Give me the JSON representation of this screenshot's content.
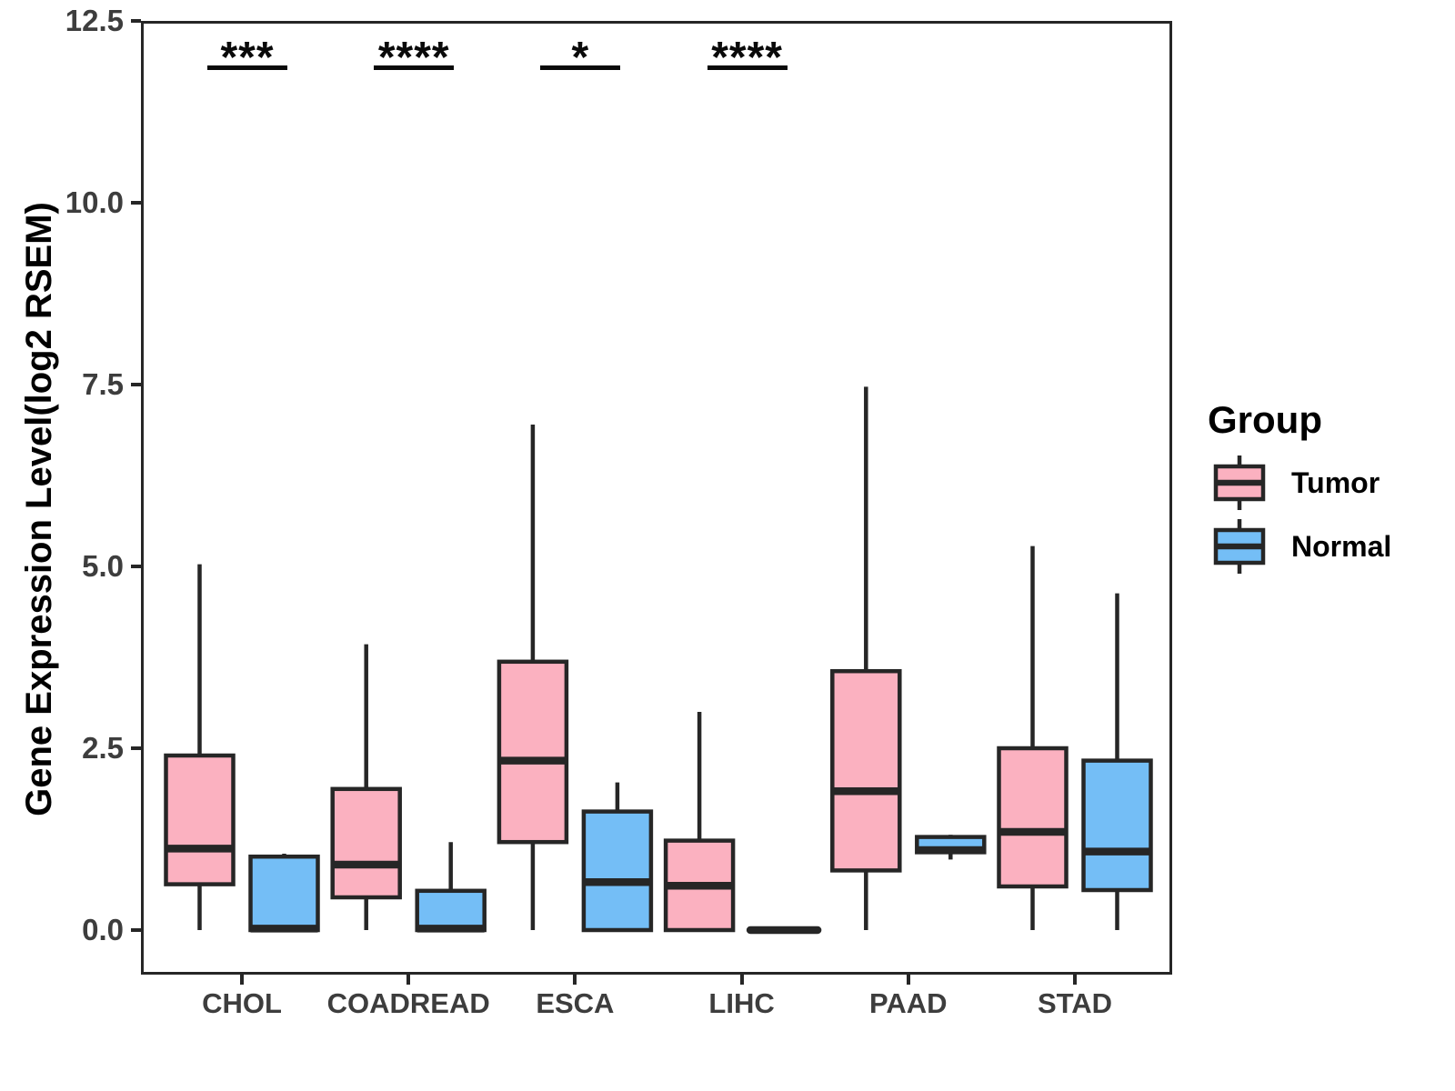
{
  "chart_data": {
    "type": "boxplot",
    "title": "",
    "xlabel": "",
    "ylabel": "Gene Expression Level(log2 RSEM)",
    "ylim": [
      -0.6,
      12.5
    ],
    "yticks": [
      0.0,
      2.5,
      5.0,
      7.5,
      10.0,
      12.5
    ],
    "ytick_labels": [
      "0.0",
      "2.5",
      "5.0",
      "7.5",
      "10.0",
      "12.5"
    ],
    "categories": [
      "CHOL",
      "COADREAD",
      "ESCA",
      "LIHC",
      "PAAD",
      "STAD"
    ],
    "grid": false,
    "series": [
      {
        "name": "Tumor",
        "color": "#FBB1C0",
        "boxes": [
          {
            "min": 0.0,
            "q1": 0.63,
            "median": 1.12,
            "q3": 2.4,
            "max": 5.03
          },
          {
            "min": 0.0,
            "q1": 0.45,
            "median": 0.9,
            "q3": 1.94,
            "max": 3.93
          },
          {
            "min": 0.0,
            "q1": 1.21,
            "median": 2.33,
            "q3": 3.69,
            "max": 6.95
          },
          {
            "min": 0.0,
            "q1": 0.0,
            "median": 0.61,
            "q3": 1.23,
            "max": 3.0
          },
          {
            "min": 0.0,
            "q1": 0.82,
            "median": 1.91,
            "q3": 3.56,
            "max": 7.47
          },
          {
            "min": 0.0,
            "q1": 0.6,
            "median": 1.35,
            "q3": 2.5,
            "max": 5.28
          }
        ]
      },
      {
        "name": "Normal",
        "color": "#74BEF6",
        "boxes": [
          {
            "min": 0.0,
            "q1": 0.0,
            "median": 0.02,
            "q3": 1.01,
            "max": 1.05
          },
          {
            "min": 0.0,
            "q1": 0.0,
            "median": 0.02,
            "q3": 0.54,
            "max": 1.21
          },
          {
            "min": 0.0,
            "q1": 0.0,
            "median": 0.66,
            "q3": 1.63,
            "max": 2.03
          },
          {
            "min": 0.0,
            "q1": 0.0,
            "median": 0.0,
            "q3": 0.0,
            "max": 0.0
          },
          {
            "min": 0.97,
            "q1": 1.07,
            "median": 1.1,
            "q3": 1.28,
            "max": 1.31
          },
          {
            "min": 0.0,
            "q1": 0.55,
            "median": 1.08,
            "q3": 2.33,
            "max": 4.63
          }
        ]
      }
    ],
    "significance": [
      {
        "category": "CHOL",
        "label": "***"
      },
      {
        "category": "COADREAD",
        "label": "****"
      },
      {
        "category": "ESCA",
        "label": "*"
      },
      {
        "category": "LIHC",
        "label": "****"
      },
      {
        "category": "PAAD",
        "label": ""
      },
      {
        "category": "STAD",
        "label": ""
      }
    ],
    "legend": {
      "title": "Group",
      "position": "right",
      "entries": [
        {
          "label": "Tumor",
          "color": "#FBB1C0"
        },
        {
          "label": "Normal",
          "color": "#74BEF6"
        }
      ]
    },
    "style": {
      "line_color": "#262626",
      "axis_text_color": "#3d3d3d",
      "title_color": "#000000",
      "background": "#ffffff"
    }
  }
}
